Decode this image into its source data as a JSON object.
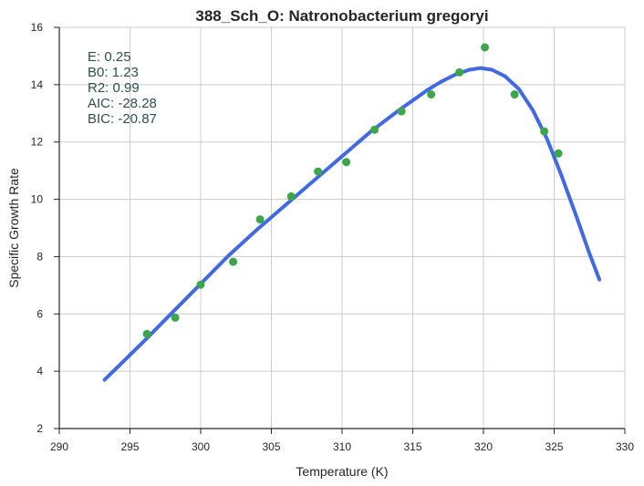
{
  "chart_data": {
    "type": "scatter",
    "title": "388_Sch_O: Natronobacterium gregoryi",
    "xlabel": "Temperature (K)",
    "ylabel": "Specific Growth Rate",
    "xlim": [
      290,
      330
    ],
    "ylim": [
      2,
      16
    ],
    "xticks": [
      290,
      295,
      300,
      305,
      310,
      315,
      320,
      325,
      330
    ],
    "yticks": [
      2,
      4,
      6,
      8,
      10,
      12,
      14,
      16
    ],
    "grid": true,
    "annotations": [
      {
        "label": "E:",
        "value": "0.25"
      },
      {
        "label": "B0:",
        "value": "1.23"
      },
      {
        "label": "R2:",
        "value": "0.99"
      },
      {
        "label": "AIC:",
        "value": "-28.28"
      },
      {
        "label": "BIC:",
        "value": "-20.87"
      }
    ],
    "series": [
      {
        "kind": "scatter",
        "color": "#3ea64a",
        "x": [
          296.2,
          298.2,
          300.0,
          302.3,
          304.2,
          306.4,
          308.3,
          310.3,
          312.3,
          314.2,
          316.3,
          318.3,
          320.1,
          322.2,
          324.3,
          325.3
        ],
        "y": [
          5.3,
          5.87,
          7.02,
          7.82,
          9.3,
          10.1,
          10.97,
          11.3,
          12.43,
          13.07,
          13.66,
          14.43,
          15.3,
          13.66,
          12.37,
          11.6
        ]
      },
      {
        "kind": "line",
        "color": "#4169e1",
        "x": [
          293.2,
          296.0,
          298.0,
          300.0,
          302.0,
          304.0,
          306.0,
          308.0,
          310.0,
          312.0,
          314.0,
          316.0,
          317.0,
          318.0,
          319.0,
          319.8,
          320.6,
          321.5,
          322.5,
          323.5,
          324.5,
          325.5,
          326.5,
          327.5,
          328.2
        ],
        "y": [
          3.7,
          5.05,
          6.05,
          7.05,
          8.05,
          8.95,
          9.8,
          10.65,
          11.5,
          12.35,
          13.1,
          13.8,
          14.1,
          14.35,
          14.52,
          14.58,
          14.52,
          14.3,
          13.85,
          13.1,
          12.1,
          10.85,
          9.5,
          8.1,
          7.2
        ]
      }
    ]
  }
}
